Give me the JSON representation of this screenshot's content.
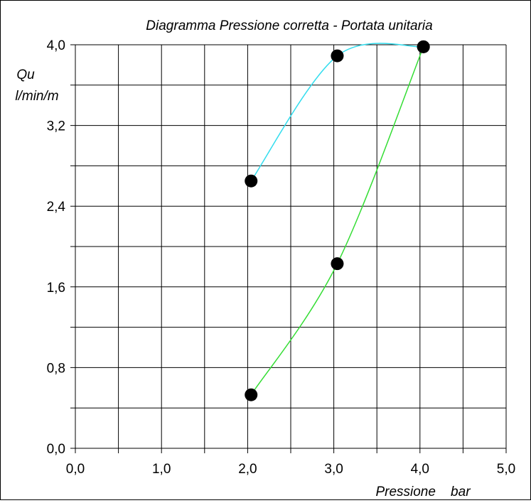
{
  "chart_data": {
    "type": "scatter",
    "title": "Diagramma  Pressione corretta - Portata unitaria",
    "xlabel": "Pressione    bar",
    "ylabel_line1": "Qu",
    "ylabel_line2": "l/min/m",
    "xlim": [
      0,
      5
    ],
    "ylim": [
      0,
      4
    ],
    "grid": true,
    "x_tick_values": [
      0,
      1,
      2,
      3,
      4,
      5
    ],
    "x_tick_labels": [
      "0,0",
      "1,0",
      "2,0",
      "3,0",
      "4,0",
      "5,0"
    ],
    "y_tick_values": [
      0,
      0.8,
      1.6,
      2.4,
      3.2,
      4.0
    ],
    "y_tick_labels": [
      "0,0",
      "0,8",
      "1,6",
      "2,4",
      "3,2",
      "4,0"
    ],
    "series": [
      {
        "color": "#33ddee",
        "points": [
          [
            2.04,
            2.65
          ],
          [
            3.04,
            3.89
          ],
          [
            4.04,
            3.98
          ]
        ]
      },
      {
        "color": "#33dd33",
        "points": [
          [
            2.04,
            0.53
          ],
          [
            3.04,
            1.83
          ],
          [
            4.04,
            3.98
          ]
        ]
      }
    ],
    "marker_color": "#000000"
  }
}
